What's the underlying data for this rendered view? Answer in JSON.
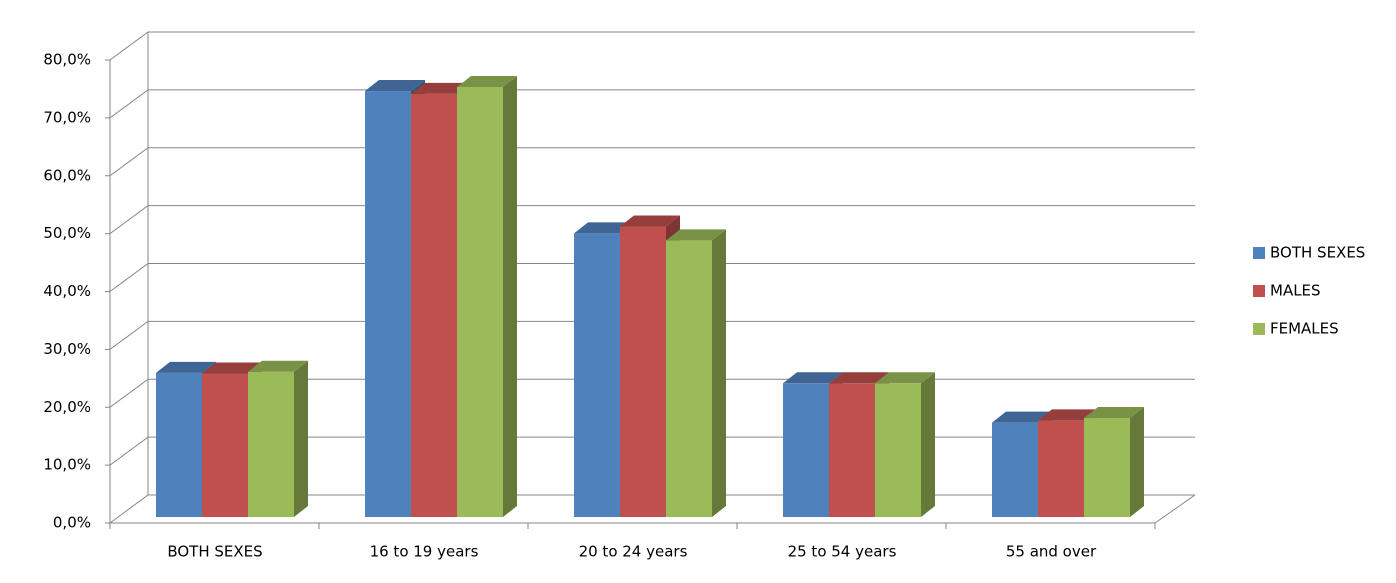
{
  "chart_data": {
    "type": "bar3d",
    "categories": [
      "BOTH SEXES",
      "16 to 19 years",
      "20 to 24 years",
      "25 to 54 years",
      "55 and over"
    ],
    "series": [
      {
        "name": "BOTH SEXES",
        "color": "#4f81bd",
        "values": [
          24.9,
          73.6,
          49.0,
          23.1,
          16.3
        ]
      },
      {
        "name": "MALES",
        "color": "#c0504d",
        "values": [
          24.8,
          73.1,
          50.2,
          23.1,
          16.7
        ]
      },
      {
        "name": "FEMALES",
        "color": "#9bbb59",
        "values": [
          25.1,
          74.3,
          47.8,
          23.1,
          17.1
        ]
      }
    ],
    "ylim": [
      0,
      80
    ],
    "yticks": [
      {
        "value": 0,
        "label": "0,0%"
      },
      {
        "value": 10,
        "label": "10,0%"
      },
      {
        "value": 20,
        "label": "20,0%"
      },
      {
        "value": 30,
        "label": "30,0%"
      },
      {
        "value": 40,
        "label": "40,0%"
      },
      {
        "value": 50,
        "label": "50,0%"
      },
      {
        "value": 60,
        "label": "60,0%"
      },
      {
        "value": 70,
        "label": "70,0%"
      },
      {
        "value": 80,
        "label": "80,0%"
      }
    ],
    "grid": true,
    "legend": "right"
  }
}
